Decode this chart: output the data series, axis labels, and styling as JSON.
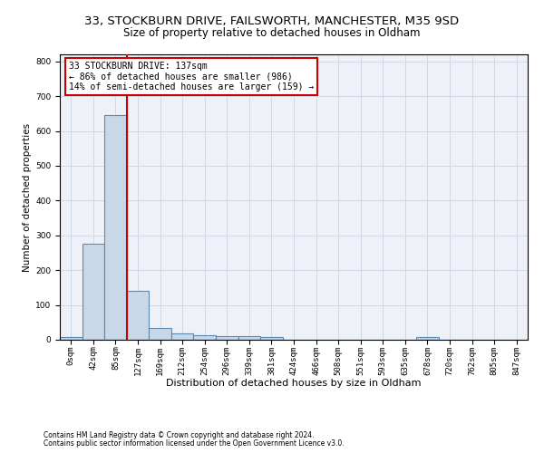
{
  "title1": "33, STOCKBURN DRIVE, FAILSWORTH, MANCHESTER, M35 9SD",
  "title2": "Size of property relative to detached houses in Oldham",
  "xlabel": "Distribution of detached houses by size in Oldham",
  "ylabel": "Number of detached properties",
  "footer1": "Contains HM Land Registry data © Crown copyright and database right 2024.",
  "footer2": "Contains public sector information licensed under the Open Government Licence v3.0.",
  "bin_labels": [
    "0sqm",
    "42sqm",
    "85sqm",
    "127sqm",
    "169sqm",
    "212sqm",
    "254sqm",
    "296sqm",
    "339sqm",
    "381sqm",
    "424sqm",
    "466sqm",
    "508sqm",
    "551sqm",
    "593sqm",
    "635sqm",
    "678sqm",
    "720sqm",
    "762sqm",
    "805sqm",
    "847sqm"
  ],
  "bar_values": [
    8,
    275,
    645,
    140,
    35,
    18,
    12,
    10,
    10,
    9,
    0,
    0,
    0,
    0,
    0,
    0,
    8,
    0,
    0,
    0,
    0
  ],
  "bar_color": "#c8d8e8",
  "bar_edge_color": "#5a8ab0",
  "bar_edge_width": 0.8,
  "vline_x": 3,
  "vline_color": "#cc0000",
  "annotation_text": "33 STOCKBURN DRIVE: 137sqm\n← 86% of detached houses are smaller (986)\n14% of semi-detached houses are larger (159) →",
  "annotation_box_color": "white",
  "annotation_box_edge_color": "#cc0000",
  "ylim": [
    0,
    820
  ],
  "yticks": [
    0,
    100,
    200,
    300,
    400,
    500,
    600,
    700,
    800
  ],
  "grid_color": "#d0d8e8",
  "bg_color": "#eef2f8",
  "title1_fontsize": 9.5,
  "title2_fontsize": 8.5,
  "xlabel_fontsize": 8,
  "ylabel_fontsize": 7.5,
  "tick_fontsize": 6.5,
  "annotation_fontsize": 7,
  "footer_fontsize": 5.5
}
